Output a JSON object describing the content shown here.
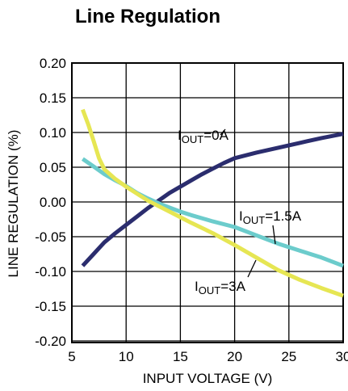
{
  "chart_data": {
    "type": "line",
    "title": "Line Regulation",
    "xlabel": "INPUT VOLTAGE (V)",
    "ylabel": "LINE REGULATION  (%)",
    "xlim": [
      5,
      30
    ],
    "ylim": [
      -0.22,
      0.2
    ],
    "xticks": [
      "5",
      "10",
      "15",
      "20",
      "25",
      "30"
    ],
    "yticks": [
      "0.20",
      "0.15",
      "0.10",
      "0.05",
      "0.00",
      "-0.05",
      "-0.10",
      "-0.15",
      "-0.20"
    ],
    "grid": true,
    "series": [
      {
        "name": "IOUT=0A",
        "label_main": "I",
        "label_sub": "OUT",
        "label_rest": "=0A",
        "color": "#2b2d6e",
        "x": [
          6,
          7,
          8,
          9,
          10,
          11,
          12,
          13,
          14,
          15,
          16,
          17,
          18,
          19,
          20,
          22,
          24,
          26,
          28,
          30
        ],
        "y": [
          -0.092,
          -0.075,
          -0.058,
          -0.045,
          -0.033,
          -0.021,
          -0.009,
          0.002,
          0.013,
          0.022,
          0.031,
          0.04,
          0.048,
          0.056,
          0.063,
          0.071,
          0.078,
          0.085,
          0.092,
          0.098
        ]
      },
      {
        "name": "IOUT=1.5A",
        "label_main": "I",
        "label_sub": "OUT",
        "label_rest": "=1.5A",
        "color": "#6ccccc",
        "x": [
          6,
          7,
          8,
          9,
          10,
          11,
          12,
          13,
          14,
          15,
          16,
          18,
          20,
          22,
          24,
          26,
          28,
          30
        ],
        "y": [
          0.062,
          0.051,
          0.04,
          0.031,
          0.023,
          0.013,
          0.005,
          -0.002,
          -0.008,
          -0.014,
          -0.019,
          -0.028,
          -0.036,
          -0.048,
          -0.06,
          -0.07,
          -0.08,
          -0.092
        ]
      },
      {
        "name": "IOUT=3A",
        "label_main": "I",
        "label_sub": "OUT",
        "label_rest": "=3A",
        "color": "#e6e653",
        "x": [
          6,
          6.5,
          7,
          7.5,
          8,
          9,
          10,
          11,
          12,
          13,
          14,
          15,
          16,
          18,
          20,
          22,
          24,
          26,
          28,
          30
        ],
        "y": [
          0.133,
          0.112,
          0.088,
          0.063,
          0.047,
          0.033,
          0.022,
          0.012,
          0.002,
          -0.006,
          -0.014,
          -0.022,
          -0.03,
          -0.045,
          -0.062,
          -0.08,
          -0.098,
          -0.112,
          -0.124,
          -0.135
        ]
      }
    ]
  }
}
